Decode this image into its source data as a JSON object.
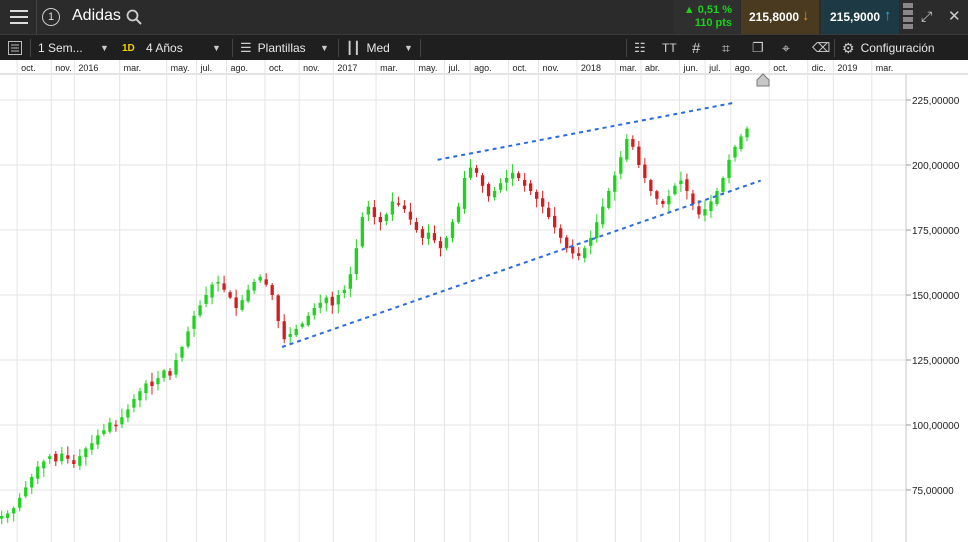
{
  "header": {
    "menu_icon": "hamburger-icon",
    "info_label": "1",
    "instrument": "Adidas",
    "change_pct": "0,51 %",
    "change_pts": "110 pts",
    "sell_price": "215,8000",
    "buy_price": "215,9000",
    "colors": {
      "sell_bg": "#4a3a1f",
      "buy_bg": "#1d3a44",
      "up": "#19d219"
    }
  },
  "toolbar": {
    "period": "1 Sem...",
    "interval_badge": "1D",
    "range": "4 Años",
    "templates": "Plantillas",
    "chart_style": "Med",
    "settings": "Configuración",
    "text_tool": "TT"
  },
  "chart_data": {
    "type": "candlestick",
    "x_axis_labels": [
      {
        "t": 3.2,
        "label": "oct."
      },
      {
        "t": 3.6,
        "label": "nov."
      },
      {
        "t": 3.87,
        "label": "2016"
      },
      {
        "t": 4.4,
        "label": "mar."
      },
      {
        "t": 4.95,
        "label": "may."
      },
      {
        "t": 5.3,
        "label": "jul."
      },
      {
        "t": 5.65,
        "label": "ago."
      },
      {
        "t": 6.1,
        "label": "oct."
      },
      {
        "t": 6.5,
        "label": "nov."
      },
      {
        "t": 6.9,
        "label": "2017"
      },
      {
        "t": 7.4,
        "label": "mar."
      },
      {
        "t": 7.85,
        "label": "may."
      },
      {
        "t": 8.2,
        "label": "jul."
      },
      {
        "t": 8.5,
        "label": "ago."
      },
      {
        "t": 8.95,
        "label": "oct."
      },
      {
        "t": 9.3,
        "label": "nov."
      },
      {
        "t": 9.75,
        "label": "2018"
      },
      {
        "t": 10.2,
        "label": "mar."
      },
      {
        "t": 10.5,
        "label": "abr."
      },
      {
        "t": 10.95,
        "label": "jun."
      },
      {
        "t": 11.25,
        "label": "jul."
      },
      {
        "t": 11.55,
        "label": "ago."
      },
      {
        "t": 12.0,
        "label": "oct."
      },
      {
        "t": 12.45,
        "label": "dic."
      },
      {
        "t": 12.75,
        "label": "2019"
      },
      {
        "t": 13.2,
        "label": "mar."
      }
    ],
    "y_ticks": [
      "225,00000",
      "200,00000",
      "175,00000",
      "150,00000",
      "125,00000",
      "100,00000",
      "75,00000"
    ],
    "y_tick_values": [
      225,
      200,
      175,
      150,
      125,
      100,
      75
    ],
    "ylim": [
      55,
      235
    ],
    "xlim": [
      3.0,
      13.6
    ],
    "up_color": "#1ed21e",
    "down_color": "#d21e1e",
    "channel_color": "#2a6be0",
    "trendlines": [
      {
        "name": "upper-channel",
        "points": [
          [
            8.12,
            202
          ],
          [
            11.6,
            224
          ]
        ]
      },
      {
        "name": "lower-channel",
        "points": [
          [
            6.3,
            130
          ],
          [
            11.9,
            194
          ]
        ]
      }
    ],
    "closes": [
      65,
      66,
      68,
      72,
      76,
      80,
      84,
      86,
      88,
      86,
      89,
      87,
      85,
      88,
      91,
      93,
      96,
      98,
      101,
      100,
      103,
      106,
      110,
      113,
      116,
      115,
      118,
      121,
      119,
      125,
      130,
      136,
      142,
      146,
      150,
      154,
      155,
      152,
      149,
      145,
      148,
      152,
      155,
      157,
      154,
      150,
      140,
      133,
      135,
      137,
      139,
      142,
      145,
      147,
      149,
      146,
      150,
      152,
      158,
      168,
      180,
      184,
      180,
      178,
      181,
      186,
      185,
      183,
      179,
      175,
      172,
      174,
      171,
      168,
      172,
      178,
      184,
      195,
      199,
      197,
      192,
      188,
      190,
      193,
      195,
      197,
      195,
      192,
      190,
      187,
      184,
      180,
      176,
      172,
      168,
      166,
      165,
      168,
      172,
      178,
      184,
      190,
      196,
      203,
      210,
      207,
      200,
      195,
      190,
      187,
      185,
      188,
      192,
      194,
      190,
      185,
      181,
      183,
      186,
      190,
      195,
      202,
      207,
      211,
      214
    ]
  }
}
